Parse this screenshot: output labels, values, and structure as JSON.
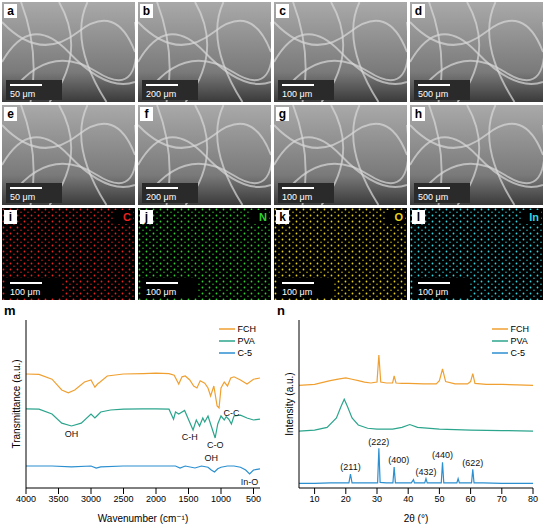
{
  "panels": [
    {
      "letter": "a",
      "scale_bar": "50 μm"
    },
    {
      "letter": "b",
      "scale_bar": "200 μm"
    },
    {
      "letter": "c",
      "scale_bar": "100 μm"
    },
    {
      "letter": "d",
      "scale_bar": "500 μm"
    },
    {
      "letter": "e",
      "scale_bar": "50 μm"
    },
    {
      "letter": "f",
      "scale_bar": "200 μm"
    },
    {
      "letter": "g",
      "scale_bar": "100 μm"
    },
    {
      "letter": "h",
      "scale_bar": "500 μm"
    }
  ],
  "element_maps": [
    {
      "letter": "i",
      "element": "C",
      "scale_bar": "100 μm",
      "color": "#e8231f"
    },
    {
      "letter": "j",
      "element": "N",
      "scale_bar": "100 μm",
      "color": "#2fd12f"
    },
    {
      "letter": "k",
      "element": "O",
      "scale_bar": "100 μm",
      "color": "#e6d21c"
    },
    {
      "letter": "l",
      "element": "In",
      "scale_bar": "100 μm",
      "color": "#2fd6e0"
    }
  ],
  "chart_data": [
    {
      "type": "line",
      "panel_label": "m",
      "x_label": "Wavenumber (cm⁻¹)",
      "y_label": "Transmittance (a.u.)",
      "xlim": [
        4000,
        400
      ],
      "xticks": [
        4000,
        3500,
        3000,
        2500,
        2000,
        1500,
        1000,
        500
      ],
      "ylim": [
        0,
        4.2
      ],
      "tick_labels": "x",
      "legend": "upper right",
      "series": [
        {
          "name": "FCH",
          "color": "#f0a030",
          "x": [
            4000,
            3800,
            3600,
            3450,
            3350,
            3250,
            3100,
            3000,
            2940,
            2900,
            2860,
            2750,
            2500,
            2200,
            2000,
            1800,
            1720,
            1650,
            1600,
            1550,
            1480,
            1420,
            1370,
            1320,
            1250,
            1200,
            1160,
            1110,
            1060,
            1030,
            1000,
            950,
            900,
            850,
            800,
            700,
            600,
            500,
            400
          ],
          "values": [
            2.85,
            2.84,
            2.72,
            2.45,
            2.38,
            2.45,
            2.65,
            2.7,
            2.52,
            2.6,
            2.65,
            2.8,
            2.85,
            2.86,
            2.87,
            2.86,
            2.82,
            2.6,
            2.78,
            2.8,
            2.7,
            2.55,
            2.5,
            2.68,
            2.62,
            2.5,
            2.3,
            2.55,
            2.05,
            2.0,
            2.5,
            2.65,
            2.55,
            2.75,
            2.78,
            2.7,
            2.6,
            2.72,
            2.75
          ]
        },
        {
          "name": "PVA",
          "color": "#2ca58d",
          "x": [
            4000,
            3800,
            3600,
            3450,
            3300,
            3150,
            3000,
            2940,
            2910,
            2850,
            2700,
            2500,
            2200,
            2000,
            1800,
            1730,
            1700,
            1650,
            1560,
            1430,
            1380,
            1330,
            1280,
            1250,
            1200,
            1140,
            1090,
            1050,
            1000,
            950,
            920,
            880,
            840,
            800,
            700,
            600,
            500,
            400
          ],
          "values": [
            1.98,
            1.97,
            1.85,
            1.62,
            1.55,
            1.62,
            1.85,
            1.75,
            1.8,
            1.9,
            1.95,
            1.97,
            1.98,
            1.98,
            1.97,
            1.72,
            1.9,
            1.85,
            1.94,
            1.45,
            1.7,
            1.55,
            1.75,
            1.65,
            1.8,
            1.5,
            1.25,
            1.6,
            1.8,
            1.7,
            1.78,
            1.72,
            1.6,
            1.8,
            1.82,
            1.75,
            1.7,
            1.72
          ]
        },
        {
          "name": "C-5",
          "color": "#2b8fd0",
          "x": [
            4000,
            3600,
            3300,
            3000,
            2920,
            2850,
            2500,
            2000,
            1700,
            1630,
            1550,
            1400,
            1300,
            1200,
            1150,
            1100,
            1050,
            1000,
            900,
            800,
            700,
            620,
            560,
            500,
            400
          ],
          "values": [
            0.55,
            0.55,
            0.53,
            0.55,
            0.5,
            0.53,
            0.55,
            0.55,
            0.55,
            0.5,
            0.55,
            0.5,
            0.55,
            0.52,
            0.45,
            0.4,
            0.48,
            0.52,
            0.55,
            0.55,
            0.52,
            0.45,
            0.35,
            0.45,
            0.48
          ]
        }
      ],
      "annotations": [
        {
          "text": "OH",
          "x": 3300,
          "y": 1.35
        },
        {
          "text": "C-H",
          "x": 1480,
          "y": 1.28
        },
        {
          "text": "C-O",
          "x": 1090,
          "y": 1.08
        },
        {
          "text": "C-C",
          "x": 840,
          "y": 1.88
        },
        {
          "text": "OH",
          "x": 1150,
          "y": 0.75
        },
        {
          "text": "In-O",
          "x": 560,
          "y": 0.15
        }
      ]
    },
    {
      "type": "line",
      "panel_label": "n",
      "x_label": "2θ (°)",
      "y_label": "Intensity (a.u.)",
      "xlim": [
        5,
        80
      ],
      "xticks": [
        10,
        20,
        30,
        40,
        50,
        60,
        70,
        80
      ],
      "ylim": [
        0,
        3.6
      ],
      "tick_labels": "x",
      "legend": "upper right",
      "series": [
        {
          "name": "FCH",
          "color": "#f0a030",
          "x": [
            5,
            10,
            15,
            18,
            20,
            22,
            24,
            26,
            28,
            30,
            30.6,
            31.2,
            33,
            35,
            35.5,
            36.1,
            38,
            40,
            45,
            49,
            50,
            51,
            52,
            55,
            59,
            60,
            60.7,
            61.4,
            65,
            70,
            75,
            80
          ],
          "values": [
            2.2,
            2.22,
            2.3,
            2.34,
            2.36,
            2.33,
            2.3,
            2.27,
            2.25,
            2.27,
            2.85,
            2.27,
            2.25,
            2.25,
            2.4,
            2.25,
            2.24,
            2.24,
            2.23,
            2.23,
            2.3,
            2.55,
            2.28,
            2.23,
            2.23,
            2.28,
            2.45,
            2.24,
            2.22,
            2.22,
            2.21,
            2.2
          ]
        },
        {
          "name": "PVA",
          "color": "#2ca58d",
          "x": [
            5,
            10,
            14,
            17,
            18.5,
            19.5,
            20.5,
            22,
            24,
            27,
            30,
            35,
            38,
            40.5,
            43,
            50,
            60,
            70,
            80
          ],
          "values": [
            1.22,
            1.24,
            1.3,
            1.5,
            1.75,
            1.9,
            1.75,
            1.5,
            1.35,
            1.28,
            1.26,
            1.26,
            1.3,
            1.36,
            1.3,
            1.26,
            1.24,
            1.23,
            1.22
          ]
        },
        {
          "name": "C-5",
          "color": "#2b8fd0",
          "x": [
            5,
            10,
            15,
            21,
            21.5,
            22,
            25,
            30,
            30.2,
            30.6,
            31.0,
            33,
            35.1,
            35.5,
            35.9,
            41,
            41.7,
            42,
            45.3,
            45.7,
            46.1,
            50.6,
            51,
            51.4,
            55.6,
            56,
            56.4,
            60.3,
            60.7,
            61.1,
            64,
            70,
            75,
            80
          ],
          "values": [
            0.1,
            0.1,
            0.11,
            0.11,
            0.3,
            0.11,
            0.11,
            0.11,
            0.11,
            0.85,
            0.12,
            0.11,
            0.11,
            0.45,
            0.11,
            0.11,
            0.18,
            0.11,
            0.11,
            0.2,
            0.11,
            0.11,
            0.55,
            0.11,
            0.11,
            0.2,
            0.11,
            0.11,
            0.4,
            0.11,
            0.11,
            0.1,
            0.1,
            0.1
          ]
        }
      ],
      "annotations": [
        {
          "text": "(211)",
          "x": 21.5,
          "y": 0.45
        },
        {
          "text": "(222)",
          "x": 30.6,
          "y": 0.98
        },
        {
          "text": "(400)",
          "x": 37,
          "y": 0.6
        },
        {
          "text": "(432)",
          "x": 45.7,
          "y": 0.35
        },
        {
          "text": "(440)",
          "x": 51,
          "y": 0.72
        },
        {
          "text": "(622)",
          "x": 60.7,
          "y": 0.55
        }
      ]
    }
  ]
}
